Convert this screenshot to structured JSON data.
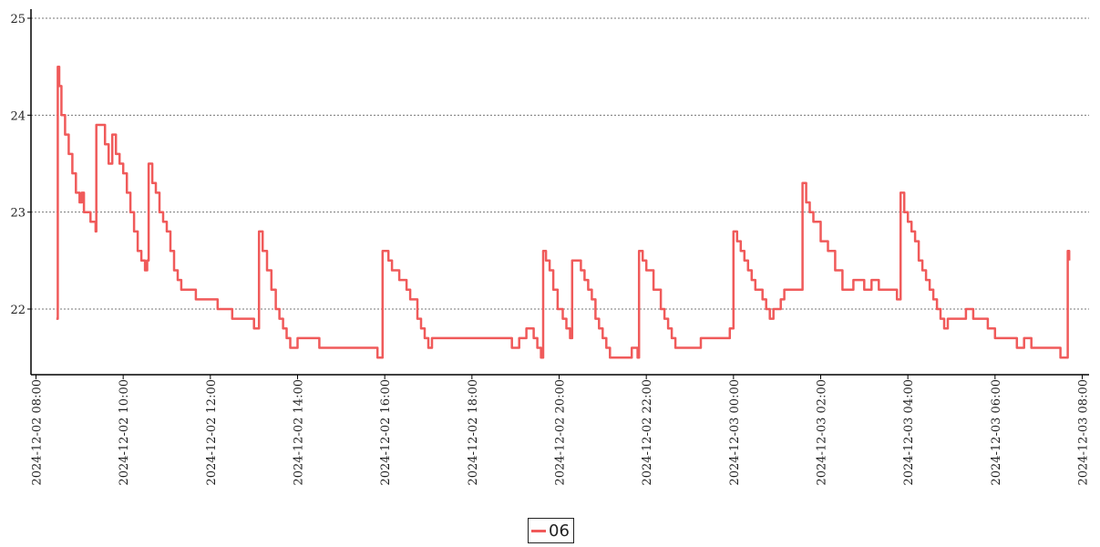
{
  "chart_data": {
    "type": "line",
    "x_axis_type": "datetime",
    "ylim": [
      21.4,
      25.1
    ],
    "y_ticks": [
      "22",
      "23",
      "24",
      "25"
    ],
    "x_ticks": [
      "2024-12-02 08:00",
      "2024-12-02 10:00",
      "2024-12-02 12:00",
      "2024-12-02 14:00",
      "2024-12-02 16:00",
      "2024-12-02 18:00",
      "2024-12-02 20:00",
      "2024-12-02 22:00",
      "2024-12-03 00:00",
      "2024-12-03 02:00",
      "2024-12-03 04:00",
      "2024-12-03 06:00",
      "2024-12-03 08:00"
    ],
    "grid": "horizontal dotted",
    "legend_position": "bottom-center",
    "series": [
      {
        "name": "06",
        "color": "#f05a5a",
        "points": [
          [
            "2024-12-02 08:28",
            21.9
          ],
          [
            "2024-12-02 08:30",
            24.5
          ],
          [
            "2024-12-02 08:32",
            24.3
          ],
          [
            "2024-12-02 08:35",
            24.0
          ],
          [
            "2024-12-02 08:40",
            23.8
          ],
          [
            "2024-12-02 08:45",
            23.6
          ],
          [
            "2024-12-02 08:50",
            23.4
          ],
          [
            "2024-12-02 08:55",
            23.2
          ],
          [
            "2024-12-02 09:00",
            23.1
          ],
          [
            "2024-12-02 09:03",
            23.2
          ],
          [
            "2024-12-02 09:06",
            23.0
          ],
          [
            "2024-12-02 09:15",
            22.9
          ],
          [
            "2024-12-02 09:22",
            22.8
          ],
          [
            "2024-12-02 09:23",
            23.9
          ],
          [
            "2024-12-02 09:30",
            23.9
          ],
          [
            "2024-12-02 09:35",
            23.7
          ],
          [
            "2024-12-02 09:40",
            23.5
          ],
          [
            "2024-12-02 09:45",
            23.8
          ],
          [
            "2024-12-02 09:50",
            23.6
          ],
          [
            "2024-12-02 09:55",
            23.5
          ],
          [
            "2024-12-02 10:00",
            23.4
          ],
          [
            "2024-12-02 10:05",
            23.2
          ],
          [
            "2024-12-02 10:10",
            23.0
          ],
          [
            "2024-12-02 10:15",
            22.8
          ],
          [
            "2024-12-02 10:20",
            22.6
          ],
          [
            "2024-12-02 10:25",
            22.5
          ],
          [
            "2024-12-02 10:30",
            22.4
          ],
          [
            "2024-12-02 10:33",
            22.5
          ],
          [
            "2024-12-02 10:35",
            23.5
          ],
          [
            "2024-12-02 10:40",
            23.3
          ],
          [
            "2024-12-02 10:45",
            23.2
          ],
          [
            "2024-12-02 10:50",
            23.0
          ],
          [
            "2024-12-02 10:55",
            22.9
          ],
          [
            "2024-12-02 11:00",
            22.8
          ],
          [
            "2024-12-02 11:05",
            22.6
          ],
          [
            "2024-12-02 11:10",
            22.4
          ],
          [
            "2024-12-02 11:15",
            22.3
          ],
          [
            "2024-12-02 11:20",
            22.2
          ],
          [
            "2024-12-02 11:30",
            22.2
          ],
          [
            "2024-12-02 11:40",
            22.1
          ],
          [
            "2024-12-02 12:00",
            22.1
          ],
          [
            "2024-12-02 12:10",
            22.0
          ],
          [
            "2024-12-02 12:30",
            21.9
          ],
          [
            "2024-12-02 12:50",
            21.9
          ],
          [
            "2024-12-02 13:00",
            21.8
          ],
          [
            "2024-12-02 13:05",
            21.8
          ],
          [
            "2024-12-02 13:07",
            22.8
          ],
          [
            "2024-12-02 13:12",
            22.6
          ],
          [
            "2024-12-02 13:18",
            22.4
          ],
          [
            "2024-12-02 13:24",
            22.2
          ],
          [
            "2024-12-02 13:30",
            22.0
          ],
          [
            "2024-12-02 13:35",
            21.9
          ],
          [
            "2024-12-02 13:40",
            21.8
          ],
          [
            "2024-12-02 13:45",
            21.7
          ],
          [
            "2024-12-02 13:50",
            21.6
          ],
          [
            "2024-12-02 14:00",
            21.7
          ],
          [
            "2024-12-02 14:20",
            21.7
          ],
          [
            "2024-12-02 14:30",
            21.6
          ],
          [
            "2024-12-02 15:00",
            21.6
          ],
          [
            "2024-12-02 15:30",
            21.6
          ],
          [
            "2024-12-02 15:50",
            21.5
          ],
          [
            "2024-12-02 15:55",
            21.5
          ],
          [
            "2024-12-02 15:57",
            22.6
          ],
          [
            "2024-12-02 16:05",
            22.5
          ],
          [
            "2024-12-02 16:10",
            22.4
          ],
          [
            "2024-12-02 16:20",
            22.3
          ],
          [
            "2024-12-02 16:30",
            22.2
          ],
          [
            "2024-12-02 16:35",
            22.1
          ],
          [
            "2024-12-02 16:45",
            21.9
          ],
          [
            "2024-12-02 16:50",
            21.8
          ],
          [
            "2024-12-02 16:55",
            21.7
          ],
          [
            "2024-12-02 17:00",
            21.6
          ],
          [
            "2024-12-02 17:05",
            21.7
          ],
          [
            "2024-12-02 17:30",
            21.7
          ],
          [
            "2024-12-02 18:00",
            21.7
          ],
          [
            "2024-12-02 18:30",
            21.7
          ],
          [
            "2024-12-02 18:55",
            21.6
          ],
          [
            "2024-12-02 19:05",
            21.7
          ],
          [
            "2024-12-02 19:15",
            21.8
          ],
          [
            "2024-12-02 19:25",
            21.7
          ],
          [
            "2024-12-02 19:30",
            21.6
          ],
          [
            "2024-12-02 19:35",
            21.5
          ],
          [
            "2024-12-02 19:38",
            22.6
          ],
          [
            "2024-12-02 19:42",
            22.5
          ],
          [
            "2024-12-02 19:47",
            22.4
          ],
          [
            "2024-12-02 19:52",
            22.2
          ],
          [
            "2024-12-02 19:58",
            22.0
          ],
          [
            "2024-12-02 20:05",
            21.9
          ],
          [
            "2024-12-02 20:10",
            21.8
          ],
          [
            "2024-12-02 20:15",
            21.7
          ],
          [
            "2024-12-02 20:18",
            22.5
          ],
          [
            "2024-12-02 20:25",
            22.5
          ],
          [
            "2024-12-02 20:30",
            22.4
          ],
          [
            "2024-12-02 20:35",
            22.3
          ],
          [
            "2024-12-02 20:40",
            22.2
          ],
          [
            "2024-12-02 20:45",
            22.1
          ],
          [
            "2024-12-02 20:50",
            21.9
          ],
          [
            "2024-12-02 20:55",
            21.8
          ],
          [
            "2024-12-02 21:00",
            21.7
          ],
          [
            "2024-12-02 21:05",
            21.6
          ],
          [
            "2024-12-02 21:10",
            21.5
          ],
          [
            "2024-12-02 21:30",
            21.5
          ],
          [
            "2024-12-02 21:40",
            21.6
          ],
          [
            "2024-12-02 21:48",
            21.5
          ],
          [
            "2024-12-02 21:50",
            22.6
          ],
          [
            "2024-12-02 21:55",
            22.5
          ],
          [
            "2024-12-02 22:00",
            22.4
          ],
          [
            "2024-12-02 22:10",
            22.2
          ],
          [
            "2024-12-02 22:20",
            22.0
          ],
          [
            "2024-12-02 22:25",
            21.9
          ],
          [
            "2024-12-02 22:30",
            21.8
          ],
          [
            "2024-12-02 22:35",
            21.7
          ],
          [
            "2024-12-02 22:40",
            21.6
          ],
          [
            "2024-12-02 23:00",
            21.6
          ],
          [
            "2024-12-02 23:15",
            21.7
          ],
          [
            "2024-12-02 23:30",
            21.7
          ],
          [
            "2024-12-02 23:50",
            21.7
          ],
          [
            "2024-12-02 23:55",
            21.8
          ],
          [
            "2024-12-03 00:00",
            22.8
          ],
          [
            "2024-12-03 00:05",
            22.7
          ],
          [
            "2024-12-03 00:10",
            22.6
          ],
          [
            "2024-12-03 00:15",
            22.5
          ],
          [
            "2024-12-03 00:20",
            22.4
          ],
          [
            "2024-12-03 00:25",
            22.3
          ],
          [
            "2024-12-03 00:30",
            22.2
          ],
          [
            "2024-12-03 00:40",
            22.1
          ],
          [
            "2024-12-03 00:45",
            22.0
          ],
          [
            "2024-12-03 00:50",
            21.9
          ],
          [
            "2024-12-03 00:55",
            22.0
          ],
          [
            "2024-12-03 01:05",
            22.1
          ],
          [
            "2024-12-03 01:10",
            22.2
          ],
          [
            "2024-12-03 01:20",
            22.2
          ],
          [
            "2024-12-03 01:30",
            22.2
          ],
          [
            "2024-12-03 01:35",
            23.3
          ],
          [
            "2024-12-03 01:40",
            23.1
          ],
          [
            "2024-12-03 01:45",
            23.0
          ],
          [
            "2024-12-03 01:50",
            22.9
          ],
          [
            "2024-12-03 02:00",
            22.7
          ],
          [
            "2024-12-03 02:10",
            22.6
          ],
          [
            "2024-12-03 02:20",
            22.4
          ],
          [
            "2024-12-03 02:30",
            22.2
          ],
          [
            "2024-12-03 02:45",
            22.3
          ],
          [
            "2024-12-03 03:00",
            22.2
          ],
          [
            "2024-12-03 03:10",
            22.3
          ],
          [
            "2024-12-03 03:20",
            22.2
          ],
          [
            "2024-12-03 03:40",
            22.2
          ],
          [
            "2024-12-03 03:45",
            22.1
          ],
          [
            "2024-12-03 03:50",
            23.2
          ],
          [
            "2024-12-03 03:55",
            23.0
          ],
          [
            "2024-12-03 04:00",
            22.9
          ],
          [
            "2024-12-03 04:05",
            22.8
          ],
          [
            "2024-12-03 04:10",
            22.7
          ],
          [
            "2024-12-03 04:15",
            22.5
          ],
          [
            "2024-12-03 04:20",
            22.4
          ],
          [
            "2024-12-03 04:25",
            22.3
          ],
          [
            "2024-12-03 04:30",
            22.2
          ],
          [
            "2024-12-03 04:35",
            22.1
          ],
          [
            "2024-12-03 04:40",
            22.0
          ],
          [
            "2024-12-03 04:45",
            21.9
          ],
          [
            "2024-12-03 04:50",
            21.8
          ],
          [
            "2024-12-03 04:55",
            21.9
          ],
          [
            "2024-12-03 05:10",
            21.9
          ],
          [
            "2024-12-03 05:20",
            22.0
          ],
          [
            "2024-12-03 05:30",
            21.9
          ],
          [
            "2024-12-03 05:40",
            21.9
          ],
          [
            "2024-12-03 05:50",
            21.8
          ],
          [
            "2024-12-03 06:00",
            21.7
          ],
          [
            "2024-12-03 06:20",
            21.7
          ],
          [
            "2024-12-03 06:30",
            21.6
          ],
          [
            "2024-12-03 06:40",
            21.7
          ],
          [
            "2024-12-03 06:50",
            21.6
          ],
          [
            "2024-12-03 07:20",
            21.6
          ],
          [
            "2024-12-03 07:30",
            21.5
          ],
          [
            "2024-12-03 07:38",
            21.5
          ],
          [
            "2024-12-03 07:40",
            22.6
          ],
          [
            "2024-12-03 07:42",
            22.5
          ]
        ]
      }
    ]
  }
}
